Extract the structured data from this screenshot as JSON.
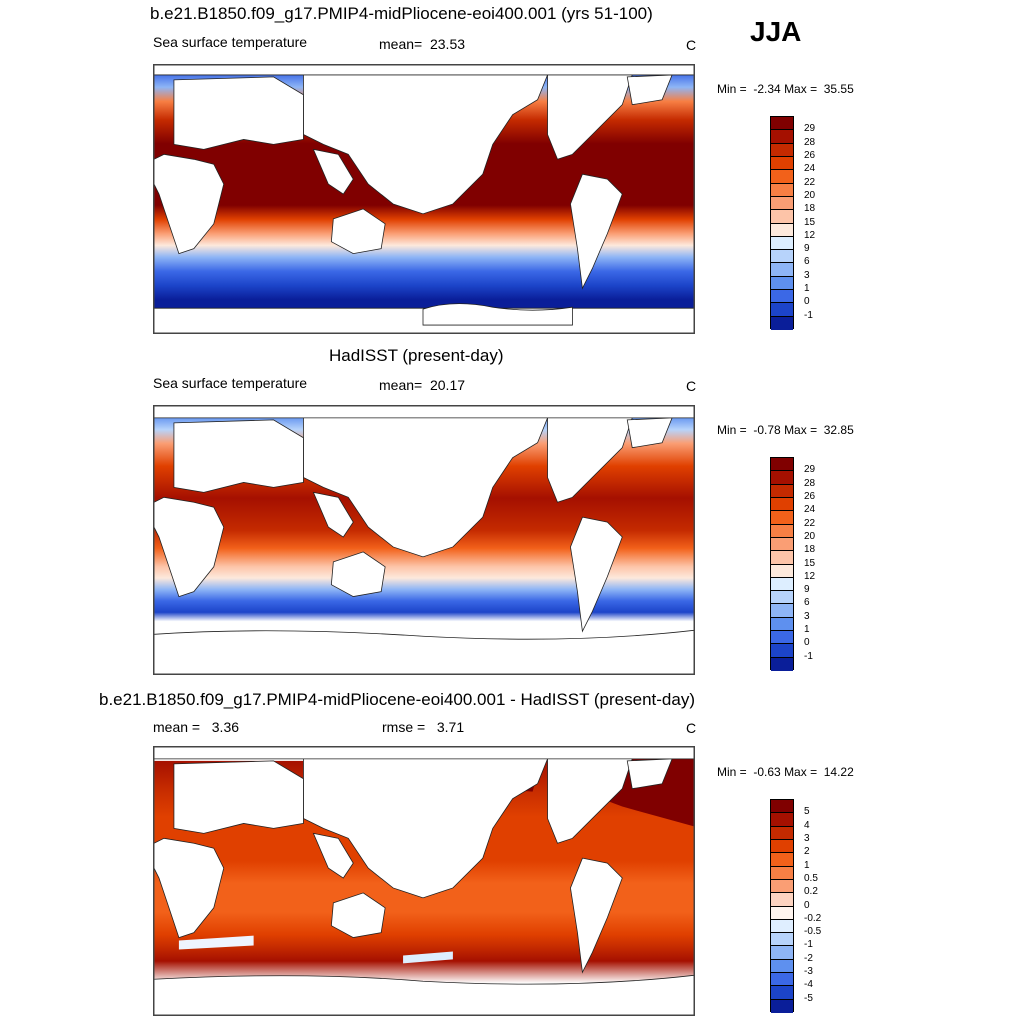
{
  "season": "JJA",
  "units_label": "C",
  "panels": [
    {
      "title": "b.e21.B1850.f09_g17.PMIP4-midPliocene-eoi400.001 (yrs 51-100)",
      "left_label": "Sea surface temperature",
      "stat_label": "mean=",
      "stat_value": "23.53",
      "units": "C",
      "min_label": "Min =",
      "min_value": "-2.34",
      "max_label": "Max =",
      "max_value": "35.55",
      "cbar_labels": [
        "29",
        "28",
        "26",
        "24",
        "22",
        "20",
        "18",
        "15",
        "12",
        "9",
        "6",
        "3",
        "1",
        "0",
        "-1"
      ],
      "cbar_colors": [
        "#800000",
        "#a51000",
        "#c42a00",
        "#e04000",
        "#f2611a",
        "#f77f44",
        "#fa9e74",
        "#fdc4a8",
        "#fde9dc",
        "#ddeeff",
        "#b7d3fb",
        "#8eb5f6",
        "#5e90ef",
        "#3b68e6",
        "#1c44c9",
        "#0a1e99"
      ]
    },
    {
      "title": "HadISST (present-day)",
      "left_label": "Sea surface temperature",
      "stat_label": "mean=",
      "stat_value": "20.17",
      "units": "C",
      "min_label": "Min =",
      "min_value": "-0.78",
      "max_label": "Max =",
      "max_value": "32.85",
      "cbar_labels": [
        "29",
        "28",
        "26",
        "24",
        "22",
        "20",
        "18",
        "15",
        "12",
        "9",
        "6",
        "3",
        "1",
        "0",
        "-1"
      ],
      "cbar_colors": [
        "#800000",
        "#a51000",
        "#c42a00",
        "#e04000",
        "#f2611a",
        "#f77f44",
        "#fa9e74",
        "#fdc4a8",
        "#fde9dc",
        "#ddeeff",
        "#b7d3fb",
        "#8eb5f6",
        "#5e90ef",
        "#3b68e6",
        "#1c44c9",
        "#0a1e99"
      ]
    },
    {
      "title": "b.e21.B1850.f09_g17.PMIP4-midPliocene-eoi400.001 - HadISST (present-day)",
      "left_label": "mean =",
      "left_value": "3.36",
      "stat_label": "rmse =",
      "stat_value": "3.71",
      "units": "C",
      "min_label": "Min =",
      "min_value": "-0.63",
      "max_label": "Max =",
      "max_value": "14.22",
      "cbar_labels": [
        "5",
        "4",
        "3",
        "2",
        "1",
        "0.5",
        "0.2",
        "0",
        "-0.2",
        "-0.5",
        "-1",
        "-2",
        "-3",
        "-4",
        "-5"
      ],
      "cbar_colors": [
        "#800000",
        "#a51000",
        "#c42a00",
        "#e04000",
        "#f2611a",
        "#f77f44",
        "#fa9e74",
        "#fdd3c0",
        "#fff5ef",
        "#dfeeff",
        "#b7d3fb",
        "#8eb5f6",
        "#5e90ef",
        "#3b68e6",
        "#1c44c9",
        "#0a1e99"
      ]
    }
  ]
}
